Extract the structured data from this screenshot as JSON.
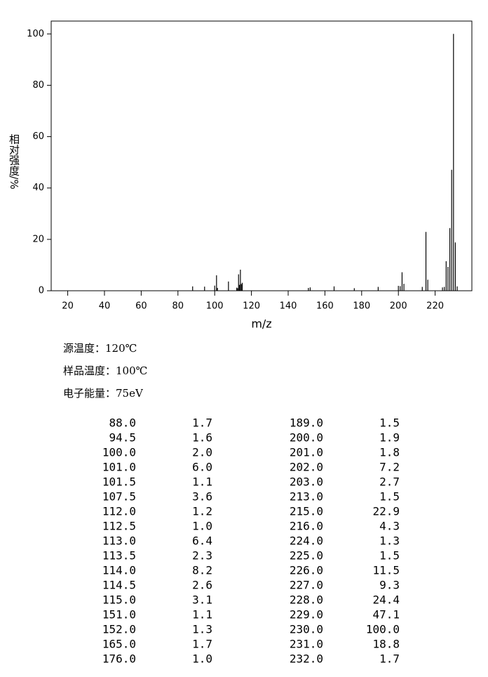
{
  "chart_data": {
    "type": "bar",
    "x_label": "m/z",
    "y_label": "相对强度/%",
    "x": [
      88.0,
      94.5,
      100.0,
      101.0,
      101.5,
      107.5,
      112.0,
      112.5,
      113.0,
      113.5,
      114.0,
      114.5,
      115.0,
      151.0,
      152.0,
      165.0,
      176.0,
      189.0,
      200.0,
      201.0,
      202.0,
      203.0,
      213.0,
      215.0,
      216.0,
      224.0,
      225.0,
      226.0,
      227.0,
      228.0,
      229.0,
      230.0,
      231.0,
      232.0
    ],
    "values": [
      1.7,
      1.6,
      2.0,
      6.0,
      1.1,
      3.6,
      1.2,
      1.0,
      6.4,
      2.3,
      8.2,
      2.6,
      3.1,
      1.1,
      1.3,
      1.7,
      1.0,
      1.5,
      1.9,
      1.8,
      7.2,
      2.7,
      1.5,
      22.9,
      4.3,
      1.3,
      1.5,
      11.5,
      9.3,
      24.4,
      47.1,
      100.0,
      18.8,
      1.7
    ],
    "color": "#000000",
    "xlim": [
      11,
      240
    ],
    "xticks": [
      20,
      40,
      60,
      80,
      100,
      120,
      140,
      160,
      180,
      200,
      220
    ],
    "ylim": [
      0,
      105
    ],
    "yticks": [
      0,
      20,
      40,
      60,
      80,
      100
    ]
  },
  "info": [
    "源温度：120℃",
    "样品温度：100℃",
    "电子能量：75eV"
  ],
  "table": {
    "rows": [
      [
        "88.0",
        "1.7",
        "189.0",
        "1.5"
      ],
      [
        "94.5",
        "1.6",
        "200.0",
        "1.9"
      ],
      [
        "100.0",
        "2.0",
        "201.0",
        "1.8"
      ],
      [
        "101.0",
        "6.0",
        "202.0",
        "7.2"
      ],
      [
        "101.5",
        "1.1",
        "203.0",
        "2.7"
      ],
      [
        "107.5",
        "3.6",
        "213.0",
        "1.5"
      ],
      [
        "112.0",
        "1.2",
        "215.0",
        "22.9"
      ],
      [
        "112.5",
        "1.0",
        "216.0",
        "4.3"
      ],
      [
        "113.0",
        "6.4",
        "224.0",
        "1.3"
      ],
      [
        "113.5",
        "2.3",
        "225.0",
        "1.5"
      ],
      [
        "114.0",
        "8.2",
        "226.0",
        "11.5"
      ],
      [
        "114.5",
        "2.6",
        "227.0",
        "9.3"
      ],
      [
        "115.0",
        "3.1",
        "228.0",
        "24.4"
      ],
      [
        "151.0",
        "1.1",
        "229.0",
        "47.1"
      ],
      [
        "152.0",
        "1.3",
        "230.0",
        "100.0"
      ],
      [
        "165.0",
        "1.7",
        "231.0",
        "18.8"
      ],
      [
        "176.0",
        "1.0",
        "232.0",
        "1.7"
      ]
    ]
  }
}
